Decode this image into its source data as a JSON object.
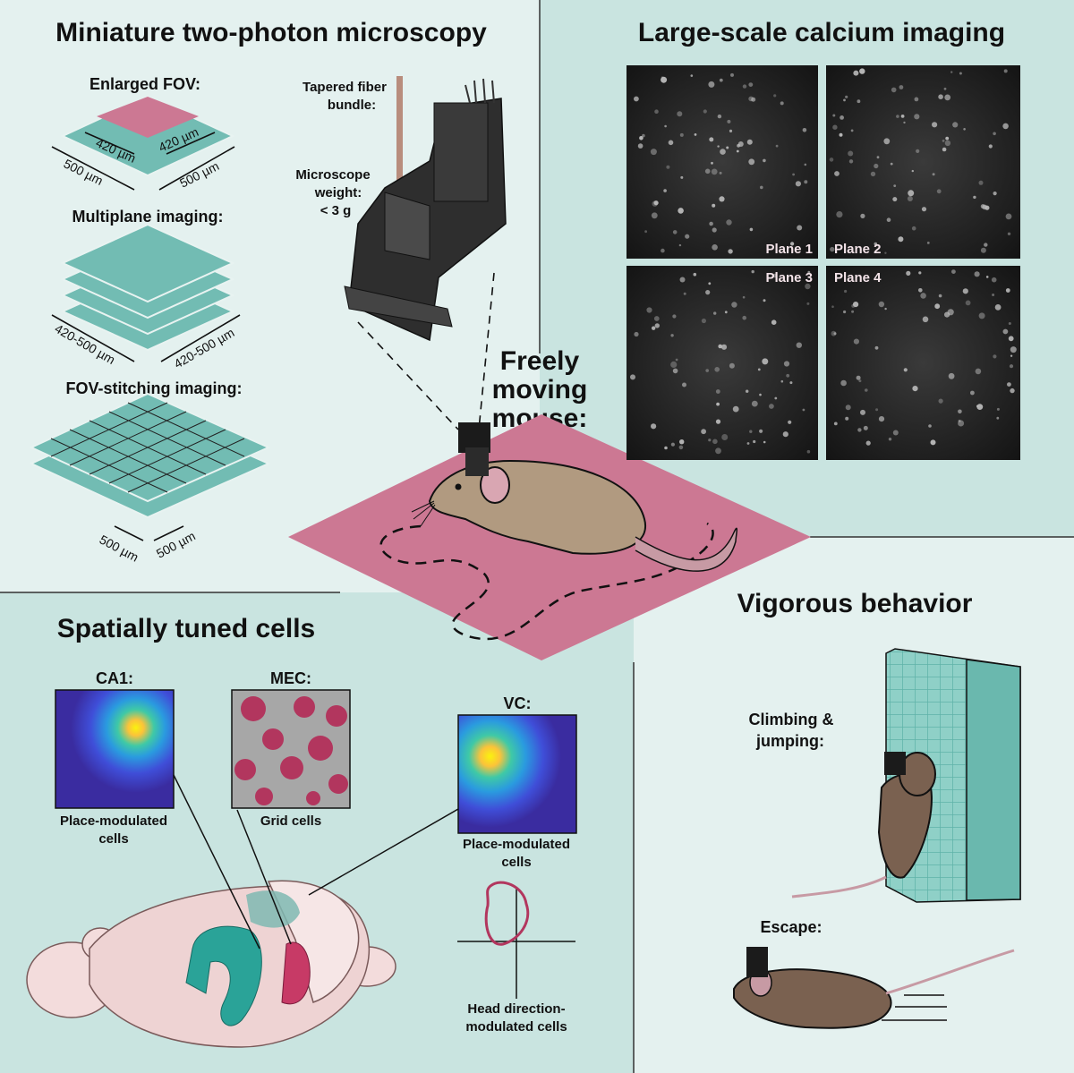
{
  "colors": {
    "teal": "#72bcb3",
    "pink": "#cc7893",
    "magenta": "#b2365e",
    "bg_light": "#e4f1ef",
    "bg_mid": "#c9e4e0"
  },
  "miniscope": {
    "title": "Miniature two-photon microscopy",
    "enlarged_fov": "Enlarged FOV:",
    "fov_inner_a": "420 µm",
    "fov_inner_b": "420 µm",
    "fov_outer_a": "500 µm",
    "fov_outer_b": "500 µm",
    "multiplane": "Multiplane imaging:",
    "mp_a": "420-500 µm",
    "mp_b": "420-500 µm",
    "stitching": "FOV-stitching imaging:",
    "st_a": "500 µm",
    "st_b": "500 µm",
    "fiber_line1": "Tapered fiber",
    "fiber_line2": "bundle:",
    "weight_line1": "Microscope",
    "weight_line2": "weight:",
    "weight_line3": "< 3 g"
  },
  "calcium": {
    "title": "Large-scale calcium imaging",
    "planes": [
      "Plane 1",
      "Plane 2",
      "Plane 3",
      "Plane 4"
    ]
  },
  "mouse": {
    "line1": "Freely",
    "line2": "moving",
    "line3": "mouse:"
  },
  "spatial": {
    "title": "Spatially tuned cells",
    "ca1": "CA1:",
    "mec": "MEC:",
    "vc": "VC:",
    "ca1_caption_1": "Place-modulated",
    "ca1_caption_2": "cells",
    "grid_caption": "Grid cells",
    "vc_caption_1": "Place-modulated",
    "vc_caption_2": "cells",
    "hd_caption_1": "Head direction-",
    "hd_caption_2": "modulated cells"
  },
  "behavior": {
    "title": "Vigorous behavior",
    "climb_1": "Climbing &",
    "climb_2": "jumping:",
    "escape": "Escape:"
  }
}
